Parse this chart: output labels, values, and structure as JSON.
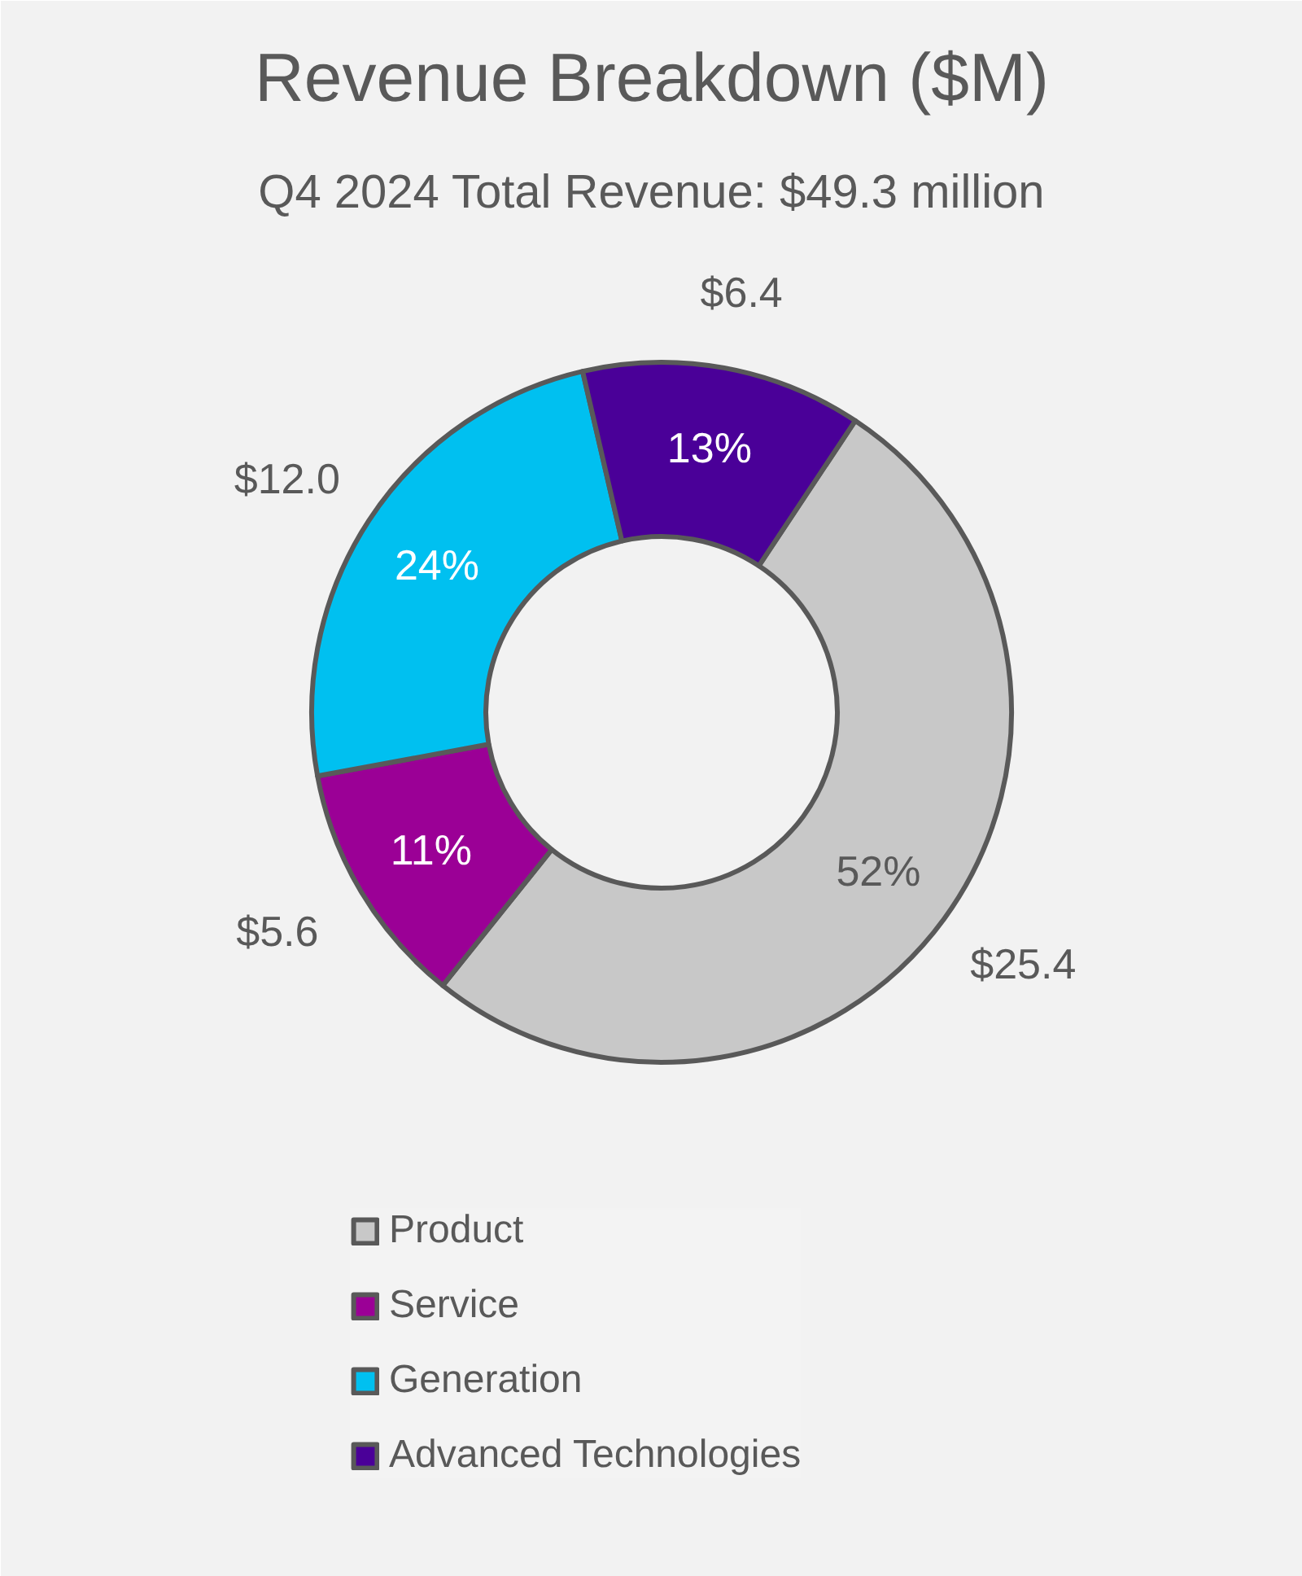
{
  "chart_data": {
    "type": "donut",
    "title": "Revenue Breakdown ($M)",
    "subtitle": "Q4 2024 Total Revenue: $49.3 million",
    "categories": [
      "Product",
      "Service",
      "Generation",
      "Advanced Technologies"
    ],
    "values": [
      25.4,
      5.6,
      12.0,
      6.4
    ],
    "colors": [
      "#c8c8c8",
      "#9b0096",
      "#00c0f0",
      "#4a0098"
    ],
    "value_labels": [
      "$25.4",
      "$5.6",
      "$12.0",
      "$6.4"
    ],
    "annotations": [
      "52%",
      "11%",
      "24%",
      "13%"
    ],
    "legend": "bottom"
  }
}
